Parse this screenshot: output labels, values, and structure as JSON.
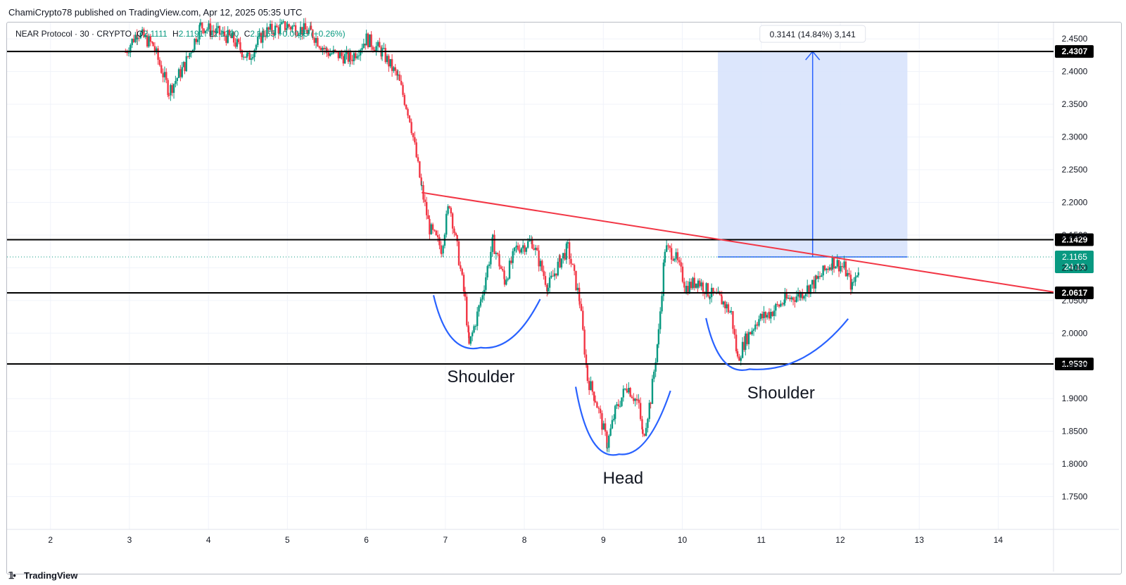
{
  "header": {
    "publisher_line": "ChamiCrypto78 published on TradingView.com, Apr 12, 2025 05:35 UTC"
  },
  "legend": {
    "symbol": "NEAR Protocol · 30 · CRYPTO",
    "o_label": "O",
    "o_value": "2.1111",
    "h_label": "H",
    "h_value": "2.1191",
    "l_label": "L",
    "l_value": "2.1100",
    "c_label": "C",
    "c_value": "2.1165",
    "change": "+0.0055 (+0.26%)"
  },
  "footer": {
    "brand": "TradingView"
  },
  "colors": {
    "up": "#089981",
    "down": "#f23645",
    "level_line": "#000000",
    "trendline": "#f23645",
    "pattern_arc": "#2962ff",
    "projection_fill": "#d6e2fb",
    "projection_line": "#2962ff",
    "last_price": "#089981"
  },
  "chart_data": {
    "type": "candlestick",
    "title": "NEAR Protocol · 30 · CRYPTO",
    "x_axis": {
      "type": "date",
      "unit": "day (April 2025)",
      "range": [
        1.45,
        14.7
      ],
      "tick_labels": [
        "2",
        "3",
        "4",
        "5",
        "6",
        "7",
        "8",
        "9",
        "10",
        "11",
        "12",
        "13",
        "14"
      ],
      "tick_values": [
        2,
        3,
        4,
        5,
        6,
        7,
        8,
        9,
        10,
        11,
        12,
        13,
        14
      ]
    },
    "y_axis": {
      "range": [
        1.7,
        2.475
      ],
      "tick_labels": [
        "1.7500",
        "1.8000",
        "1.8500",
        "1.9000",
        "1.9500",
        "2.0000",
        "2.0500",
        "2.1000",
        "2.1500",
        "2.2000",
        "2.2500",
        "2.3000",
        "2.3500",
        "2.4000",
        "2.4500"
      ],
      "tick_values": [
        1.75,
        1.8,
        1.85,
        1.9,
        1.95,
        2.0,
        2.05,
        2.1,
        2.15,
        2.2,
        2.25,
        2.3,
        2.35,
        2.4,
        2.45
      ]
    },
    "grid": true,
    "price_path": [
      [
        2.95,
        2.43
      ],
      [
        3.1,
        2.46
      ],
      [
        3.3,
        2.44
      ],
      [
        3.5,
        2.37
      ],
      [
        3.7,
        2.41
      ],
      [
        3.9,
        2.47
      ],
      [
        4.1,
        2.46
      ],
      [
        4.3,
        2.45
      ],
      [
        4.5,
        2.42
      ],
      [
        4.7,
        2.46
      ],
      [
        5.0,
        2.47
      ],
      [
        5.3,
        2.46
      ],
      [
        5.5,
        2.43
      ],
      [
        5.8,
        2.42
      ],
      [
        6.0,
        2.45
      ],
      [
        6.2,
        2.43
      ],
      [
        6.4,
        2.39
      ],
      [
        6.55,
        2.33
      ],
      [
        6.7,
        2.22
      ],
      [
        6.8,
        2.16
      ],
      [
        6.95,
        2.13
      ],
      [
        7.05,
        2.2
      ],
      [
        7.15,
        2.13
      ],
      [
        7.25,
        2.05
      ],
      [
        7.3,
        1.98
      ],
      [
        7.45,
        2.05
      ],
      [
        7.6,
        2.14
      ],
      [
        7.75,
        2.08
      ],
      [
        7.9,
        2.13
      ],
      [
        8.1,
        2.14
      ],
      [
        8.3,
        2.07
      ],
      [
        8.45,
        2.11
      ],
      [
        8.55,
        2.13
      ],
      [
        8.7,
        2.05
      ],
      [
        8.8,
        1.93
      ],
      [
        8.9,
        1.9
      ],
      [
        9.05,
        1.83
      ],
      [
        9.15,
        1.88
      ],
      [
        9.3,
        1.92
      ],
      [
        9.45,
        1.89
      ],
      [
        9.5,
        1.84
      ],
      [
        9.6,
        1.9
      ],
      [
        9.7,
        2.0
      ],
      [
        9.78,
        2.13
      ],
      [
        9.9,
        2.12
      ],
      [
        10.05,
        2.07
      ],
      [
        10.2,
        2.08
      ],
      [
        10.35,
        2.06
      ],
      [
        10.5,
        2.05
      ],
      [
        10.62,
        2.03
      ],
      [
        10.7,
        1.96
      ],
      [
        10.8,
        1.99
      ],
      [
        10.95,
        2.02
      ],
      [
        11.1,
        2.03
      ],
      [
        11.3,
        2.05
      ],
      [
        11.5,
        2.06
      ],
      [
        11.7,
        2.08
      ],
      [
        11.9,
        2.11
      ],
      [
        12.05,
        2.1
      ],
      [
        12.15,
        2.07
      ],
      [
        12.23,
        2.1
      ],
      [
        12.25,
        2.1165
      ]
    ],
    "horizontal_levels": [
      {
        "value": 2.4307,
        "label": "2.4307"
      },
      {
        "value": 2.1429,
        "label": "2.1429"
      },
      {
        "value": 2.0617,
        "label": "2.0617"
      },
      {
        "value": 1.953,
        "label": "1.9530"
      }
    ],
    "last_price": {
      "value": 2.1165,
      "label": "2.1165",
      "countdown": "24:13"
    },
    "trendline": {
      "from": [
        6.7,
        2.215
      ],
      "to": [
        14.7,
        2.063
      ]
    },
    "pattern_arcs": [
      {
        "label": "Shoulder",
        "start": [
          6.85,
          2.058
        ],
        "bottom": [
          7.45,
          1.978
        ],
        "end": [
          8.2,
          2.052
        ]
      },
      {
        "label": "Head",
        "start": [
          8.65,
          1.918
        ],
        "bottom": [
          9.2,
          1.815
        ],
        "end": [
          9.85,
          1.912
        ]
      },
      {
        "label": "Shoulder",
        "start": [
          10.3,
          2.023
        ],
        "bottom": [
          10.85,
          1.945
        ],
        "end": [
          12.1,
          2.022
        ]
      }
    ],
    "annotations": [
      {
        "text": "Shoulder",
        "x": 7.45,
        "y": 1.925
      },
      {
        "text": "Head",
        "x": 9.25,
        "y": 1.77
      },
      {
        "text": "Shoulder",
        "x": 11.25,
        "y": 1.9
      }
    ],
    "projection": {
      "x_range": [
        10.45,
        12.85
      ],
      "y_range": [
        2.1165,
        2.4307
      ],
      "arrow_x": 11.65,
      "label": "0.3141 (14.84%) 3,141"
    }
  }
}
